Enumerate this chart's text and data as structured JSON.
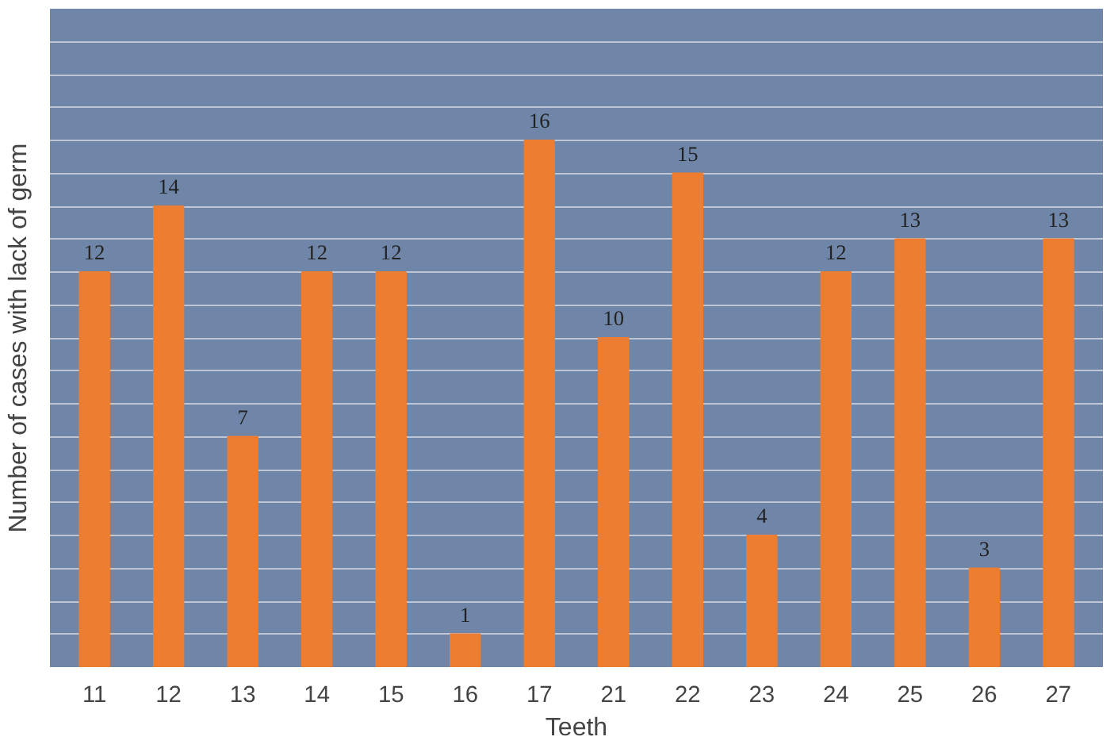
{
  "chart_data": {
    "type": "bar",
    "xlabel": "Teeth",
    "ylabel": "Number of cases with lack of germ",
    "categories": [
      "11",
      "12",
      "13",
      "14",
      "15",
      "16",
      "17",
      "21",
      "22",
      "23",
      "24",
      "25",
      "26",
      "27"
    ],
    "values": [
      12,
      14,
      7,
      12,
      12,
      1,
      16,
      10,
      15,
      4,
      12,
      13,
      3,
      13
    ],
    "color": "#ed7d31",
    "data_labels": true,
    "ylim": [
      0,
      20
    ],
    "yticks": [
      {
        "value": 0,
        "label": null
      },
      {
        "value": 1,
        "label": null
      },
      {
        "value": 2,
        "label": null
      },
      {
        "value": 3,
        "label": null
      },
      {
        "value": 4,
        "label": null
      },
      {
        "value": 5,
        "label": null
      },
      {
        "value": 6,
        "label": null
      },
      {
        "value": 7,
        "label": null
      },
      {
        "value": 8,
        "label": null
      },
      {
        "value": 9,
        "label": null
      },
      {
        "value": 10,
        "label": null
      },
      {
        "value": 11,
        "label": null
      },
      {
        "value": 12,
        "label": null
      },
      {
        "value": 13,
        "label": null
      },
      {
        "value": 14,
        "label": null
      },
      {
        "value": 15,
        "label": null
      },
      {
        "value": 16,
        "label": null
      },
      {
        "value": 17,
        "label": null
      },
      {
        "value": 18,
        "label": null
      },
      {
        "value": 19,
        "label": null
      },
      {
        "value": 20,
        "label": null
      }
    ],
    "grid": "y",
    "tick_labels": "x"
  }
}
